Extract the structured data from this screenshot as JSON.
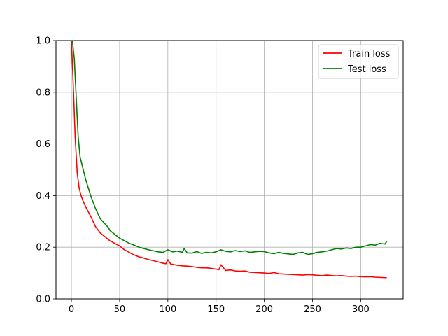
{
  "chart_data": {
    "type": "line",
    "title": "",
    "xlabel": "",
    "ylabel": "",
    "xlim": [
      -16,
      344
    ],
    "ylim": [
      0,
      1
    ],
    "xticks": [
      0,
      50,
      100,
      150,
      200,
      250,
      300
    ],
    "yticks": [
      0.0,
      0.2,
      0.4,
      0.6,
      0.8,
      1.0
    ],
    "xtick_labels": [
      "0",
      "50",
      "100",
      "150",
      "200",
      "250",
      "300"
    ],
    "ytick_labels": [
      "0.0",
      "0.2",
      "0.4",
      "0.6",
      "0.8",
      "1.0"
    ],
    "grid": true,
    "legend_position": "upper-right",
    "series": [
      {
        "name": "Train loss",
        "color": "#ff0000",
        "x": [
          0,
          2,
          4,
          6,
          8,
          10,
          12,
          15,
          20,
          25,
          30,
          35,
          40,
          45,
          50,
          55,
          60,
          65,
          70,
          75,
          80,
          85,
          90,
          95,
          98,
          100,
          103,
          110,
          115,
          120,
          125,
          130,
          135,
          140,
          145,
          150,
          153,
          155,
          160,
          165,
          170,
          175,
          180,
          185,
          190,
          195,
          200,
          205,
          210,
          215,
          220,
          225,
          230,
          235,
          240,
          245,
          250,
          255,
          260,
          265,
          270,
          275,
          280,
          285,
          290,
          295,
          300,
          305,
          310,
          315,
          320,
          325,
          327
        ],
        "y": [
          1.0,
          0.82,
          0.62,
          0.49,
          0.43,
          0.4,
          0.38,
          0.355,
          0.32,
          0.28,
          0.255,
          0.24,
          0.225,
          0.215,
          0.205,
          0.19,
          0.18,
          0.17,
          0.163,
          0.158,
          0.152,
          0.148,
          0.143,
          0.138,
          0.136,
          0.152,
          0.135,
          0.13,
          0.128,
          0.127,
          0.125,
          0.122,
          0.12,
          0.12,
          0.118,
          0.115,
          0.113,
          0.132,
          0.11,
          0.112,
          0.108,
          0.107,
          0.108,
          0.103,
          0.102,
          0.101,
          0.1,
          0.098,
          0.102,
          0.097,
          0.096,
          0.095,
          0.094,
          0.093,
          0.092,
          0.094,
          0.093,
          0.091,
          0.09,
          0.092,
          0.09,
          0.089,
          0.09,
          0.088,
          0.087,
          0.088,
          0.086,
          0.085,
          0.086,
          0.084,
          0.083,
          0.082,
          0.082
        ]
      },
      {
        "name": "Test loss",
        "color": "#008000",
        "x": [
          1,
          3,
          5,
          7,
          9,
          11,
          15,
          20,
          25,
          30,
          35,
          38,
          40,
          45,
          50,
          55,
          60,
          65,
          70,
          75,
          80,
          85,
          90,
          95,
          100,
          105,
          110,
          115,
          117,
          120,
          125,
          130,
          135,
          140,
          145,
          150,
          155,
          160,
          165,
          170,
          175,
          180,
          185,
          190,
          195,
          200,
          205,
          210,
          215,
          220,
          225,
          230,
          235,
          240,
          245,
          250,
          255,
          260,
          265,
          270,
          275,
          280,
          285,
          290,
          295,
          300,
          305,
          310,
          315,
          320,
          325,
          327
        ],
        "y": [
          1.0,
          0.93,
          0.78,
          0.63,
          0.55,
          0.52,
          0.46,
          0.4,
          0.35,
          0.31,
          0.29,
          0.278,
          0.265,
          0.25,
          0.235,
          0.225,
          0.215,
          0.208,
          0.2,
          0.195,
          0.19,
          0.186,
          0.182,
          0.18,
          0.19,
          0.182,
          0.185,
          0.18,
          0.195,
          0.178,
          0.177,
          0.183,
          0.176,
          0.18,
          0.178,
          0.182,
          0.19,
          0.184,
          0.182,
          0.187,
          0.183,
          0.186,
          0.18,
          0.182,
          0.184,
          0.183,
          0.178,
          0.175,
          0.18,
          0.176,
          0.174,
          0.172,
          0.178,
          0.18,
          0.172,
          0.175,
          0.18,
          0.182,
          0.185,
          0.19,
          0.195,
          0.193,
          0.197,
          0.195,
          0.2,
          0.2,
          0.205,
          0.21,
          0.208,
          0.215,
          0.212,
          0.222
        ]
      }
    ]
  }
}
